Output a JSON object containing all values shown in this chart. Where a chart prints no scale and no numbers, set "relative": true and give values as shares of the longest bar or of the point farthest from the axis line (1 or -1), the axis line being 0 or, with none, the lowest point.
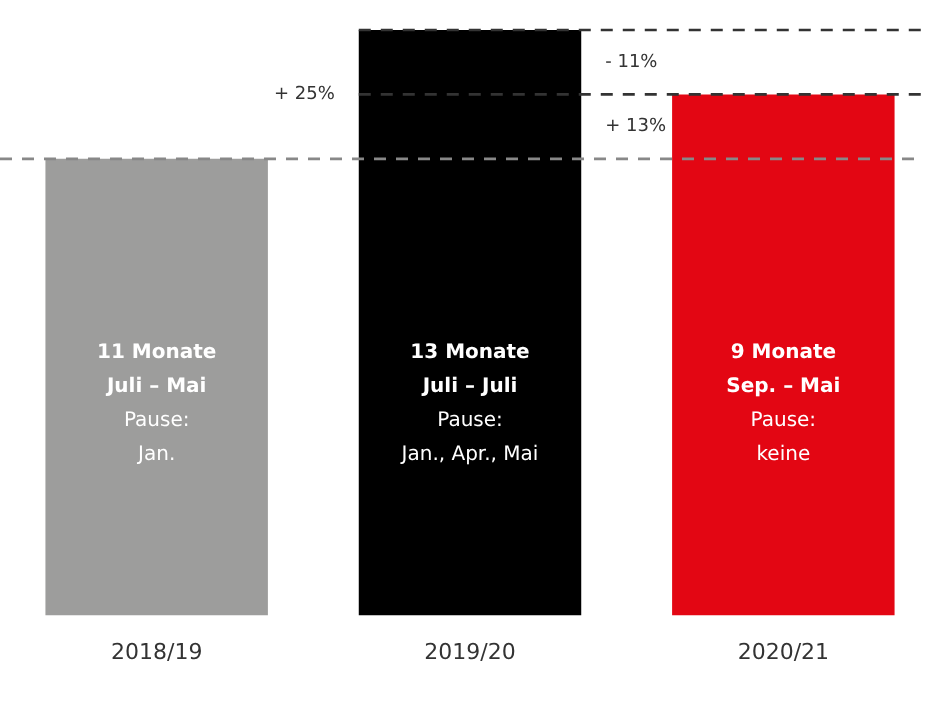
{
  "chart_data": {
    "type": "bar",
    "relative": true,
    "categories": [
      "2018/19",
      "2019/20",
      "2020/21"
    ],
    "values": [
      0.78,
      1,
      0.89
    ],
    "colors": [
      "#9d9d9c",
      "#000000",
      "#e30613"
    ],
    "grid": false,
    "legend": false,
    "ref_lines": [
      {
        "axis": "y",
        "value": 0.78,
        "color": "#888888",
        "line_style": "dashed"
      },
      {
        "axis": "y",
        "value": 1,
        "color": "#333333",
        "line_style": "dashed"
      },
      {
        "axis": "y",
        "value": 0.89,
        "color": "#333333",
        "line_style": "dashed"
      }
    ],
    "annotations": [
      "+ 25%",
      "- 11%",
      "+ 13%",
      "11 Monate\nJuli – Mai\nPause:\nJan.",
      "13 Monate\nJuli – Juli\nPause:\nJan., Apr., Mai",
      "9 Monate\nSep. – Mai\nPause:\nkeine"
    ]
  }
}
